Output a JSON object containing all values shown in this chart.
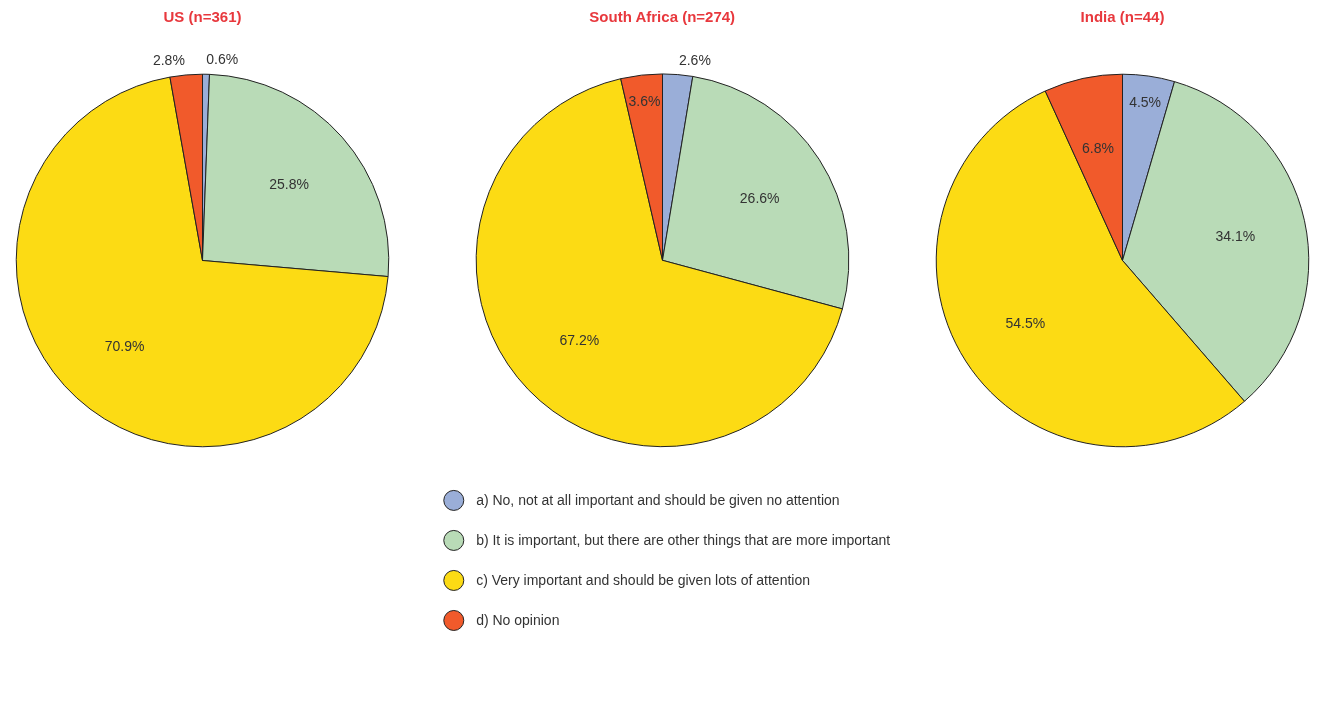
{
  "chart_data": [
    {
      "type": "pie",
      "title": "US (n=361)",
      "categories": [
        null,
        null,
        null,
        null
      ],
      "values": [
        0.6,
        25.8,
        70.9,
        2.8
      ],
      "value_labels": [
        "0.6%",
        "25.8%",
        "70.9%",
        "2.8%"
      ],
      "colors": [
        "#9aaed8",
        "#b9dbb7",
        "#fcdb14",
        "#f15a2b"
      ],
      "legend": false
    },
    {
      "type": "pie",
      "title": "South Africa (n=274)",
      "categories": [
        "a)  No, not at all important and should be given no attention",
        "b)  It is important, but there are other things that are more important",
        "c)  Very important and should be given lots of attention",
        "d)  No opinion"
      ],
      "values": [
        2.6,
        26.6,
        67.2,
        3.6
      ],
      "value_labels": [
        "2.6%",
        "26.6%",
        "67.2%",
        "3.6%"
      ],
      "colors": [
        "#9aaed8",
        "#b9dbb7",
        "#fcdb14",
        "#f15a2b"
      ],
      "legend": "bottom"
    },
    {
      "type": "pie",
      "title": "India (n=44)",
      "categories": [
        null,
        null,
        null,
        null
      ],
      "values": [
        4.5,
        34.1,
        54.5,
        6.8
      ],
      "value_labels": [
        "4.5%",
        "34.1%",
        "54.5%",
        "6.8%"
      ],
      "colors": [
        "#9aaed8",
        "#b9dbb7",
        "#fcdb14",
        "#f15a2b"
      ],
      "legend": false
    }
  ]
}
